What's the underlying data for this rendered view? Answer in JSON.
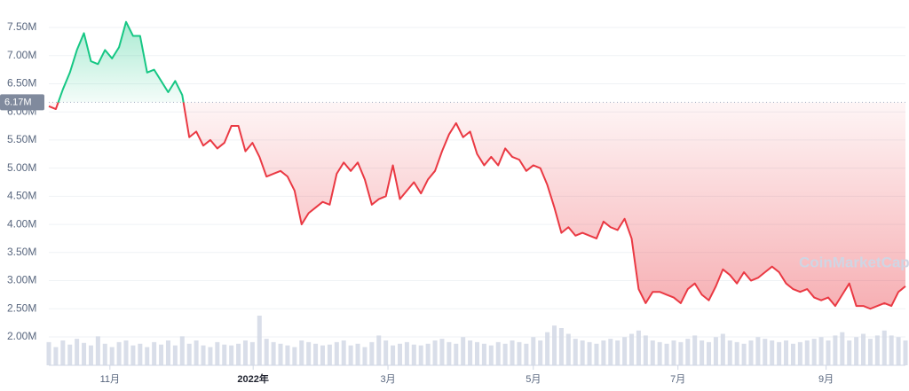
{
  "chart_data": {
    "type": "line",
    "values": [
      6.1,
      6.05,
      6.4,
      6.7,
      7.1,
      7.4,
      6.9,
      6.85,
      7.1,
      6.95,
      7.15,
      7.6,
      7.35,
      7.35,
      6.7,
      6.75,
      6.55,
      6.35,
      6.55,
      6.3,
      5.55,
      5.65,
      5.4,
      5.5,
      5.35,
      5.45,
      5.75,
      5.75,
      5.3,
      5.45,
      5.2,
      4.85,
      4.9,
      4.95,
      4.85,
      4.6,
      4.0,
      4.2,
      4.3,
      4.4,
      4.35,
      4.9,
      5.1,
      4.95,
      5.1,
      4.8,
      4.35,
      4.45,
      4.5,
      5.05,
      4.45,
      4.6,
      4.75,
      4.55,
      4.8,
      4.95,
      5.3,
      5.6,
      5.8,
      5.55,
      5.65,
      5.25,
      5.05,
      5.2,
      5.05,
      5.35,
      5.2,
      5.15,
      4.95,
      5.05,
      5.0,
      4.7,
      4.3,
      3.85,
      3.95,
      3.8,
      3.85,
      3.8,
      3.75,
      4.05,
      3.95,
      3.9,
      4.1,
      3.75,
      2.85,
      2.6,
      2.8,
      2.8,
      2.75,
      2.7,
      2.6,
      2.85,
      2.95,
      2.75,
      2.65,
      2.9,
      3.2,
      3.1,
      2.95,
      3.15,
      3.0,
      3.05,
      3.15,
      3.25,
      3.15,
      2.95,
      2.85,
      2.8,
      2.85,
      2.7,
      2.65,
      2.7,
      2.55,
      2.75,
      2.95,
      2.55,
      2.55,
      2.5,
      2.55,
      2.6,
      2.55,
      2.8,
      2.9
    ],
    "volume": [
      28,
      22,
      30,
      25,
      32,
      27,
      24,
      35,
      26,
      22,
      28,
      30,
      24,
      26,
      22,
      28,
      25,
      30,
      24,
      35,
      26,
      30,
      24,
      22,
      28,
      25,
      24,
      26,
      30,
      28,
      60,
      32,
      28,
      26,
      24,
      22,
      30,
      28,
      26,
      24,
      25,
      28,
      30,
      24,
      26,
      22,
      28,
      36,
      30,
      24,
      26,
      28,
      25,
      24,
      26,
      30,
      32,
      28,
      26,
      34,
      30,
      28,
      26,
      24,
      28,
      26,
      30,
      28,
      26,
      34,
      30,
      40,
      48,
      45,
      38,
      32,
      30,
      28,
      26,
      30,
      32,
      30,
      34,
      38,
      42,
      36,
      30,
      28,
      26,
      30,
      28,
      32,
      36,
      30,
      28,
      34,
      38,
      30,
      28,
      26,
      30,
      34,
      32,
      30,
      28,
      30,
      26,
      28,
      30,
      32,
      34,
      30,
      36,
      40,
      30,
      34,
      38,
      32,
      36,
      42,
      36,
      34,
      30
    ],
    "color": "#ea3943",
    "up_color": "#16c784",
    "ylim": [
      1.5,
      8.0
    ],
    "y2lim": [
      0,
      150
    ],
    "yticks": [
      {
        "value": 2.0,
        "label": "2.00M"
      },
      {
        "value": 2.5,
        "label": "2.50M"
      },
      {
        "value": 3.0,
        "label": "3.00M"
      },
      {
        "value": 3.5,
        "label": "3.50M"
      },
      {
        "value": 4.0,
        "label": "4.00M"
      },
      {
        "value": 4.5,
        "label": "4.50M"
      },
      {
        "value": 5.0,
        "label": "5.00M"
      },
      {
        "value": 5.5,
        "label": "5.50M"
      },
      {
        "value": 6.0,
        "label": "6.00M"
      },
      {
        "value": 6.5,
        "label": "6.50M"
      },
      {
        "value": 7.0,
        "label": "7.00M"
      },
      {
        "value": 7.5,
        "label": "7.50M"
      }
    ],
    "xticks": [
      {
        "value": 8.7,
        "label": "11月"
      },
      {
        "value": 29.1,
        "label": "2022年"
      },
      {
        "value": 48.3,
        "label": "3月"
      },
      {
        "value": 69.0,
        "label": "5月"
      },
      {
        "value": 89.6,
        "label": "7月"
      },
      {
        "value": 110.7,
        "label": "9月"
      }
    ],
    "baseline": {
      "value": 6.17,
      "label": "6.17M"
    },
    "watermark": "CoinMarketCap",
    "grid": true
  }
}
